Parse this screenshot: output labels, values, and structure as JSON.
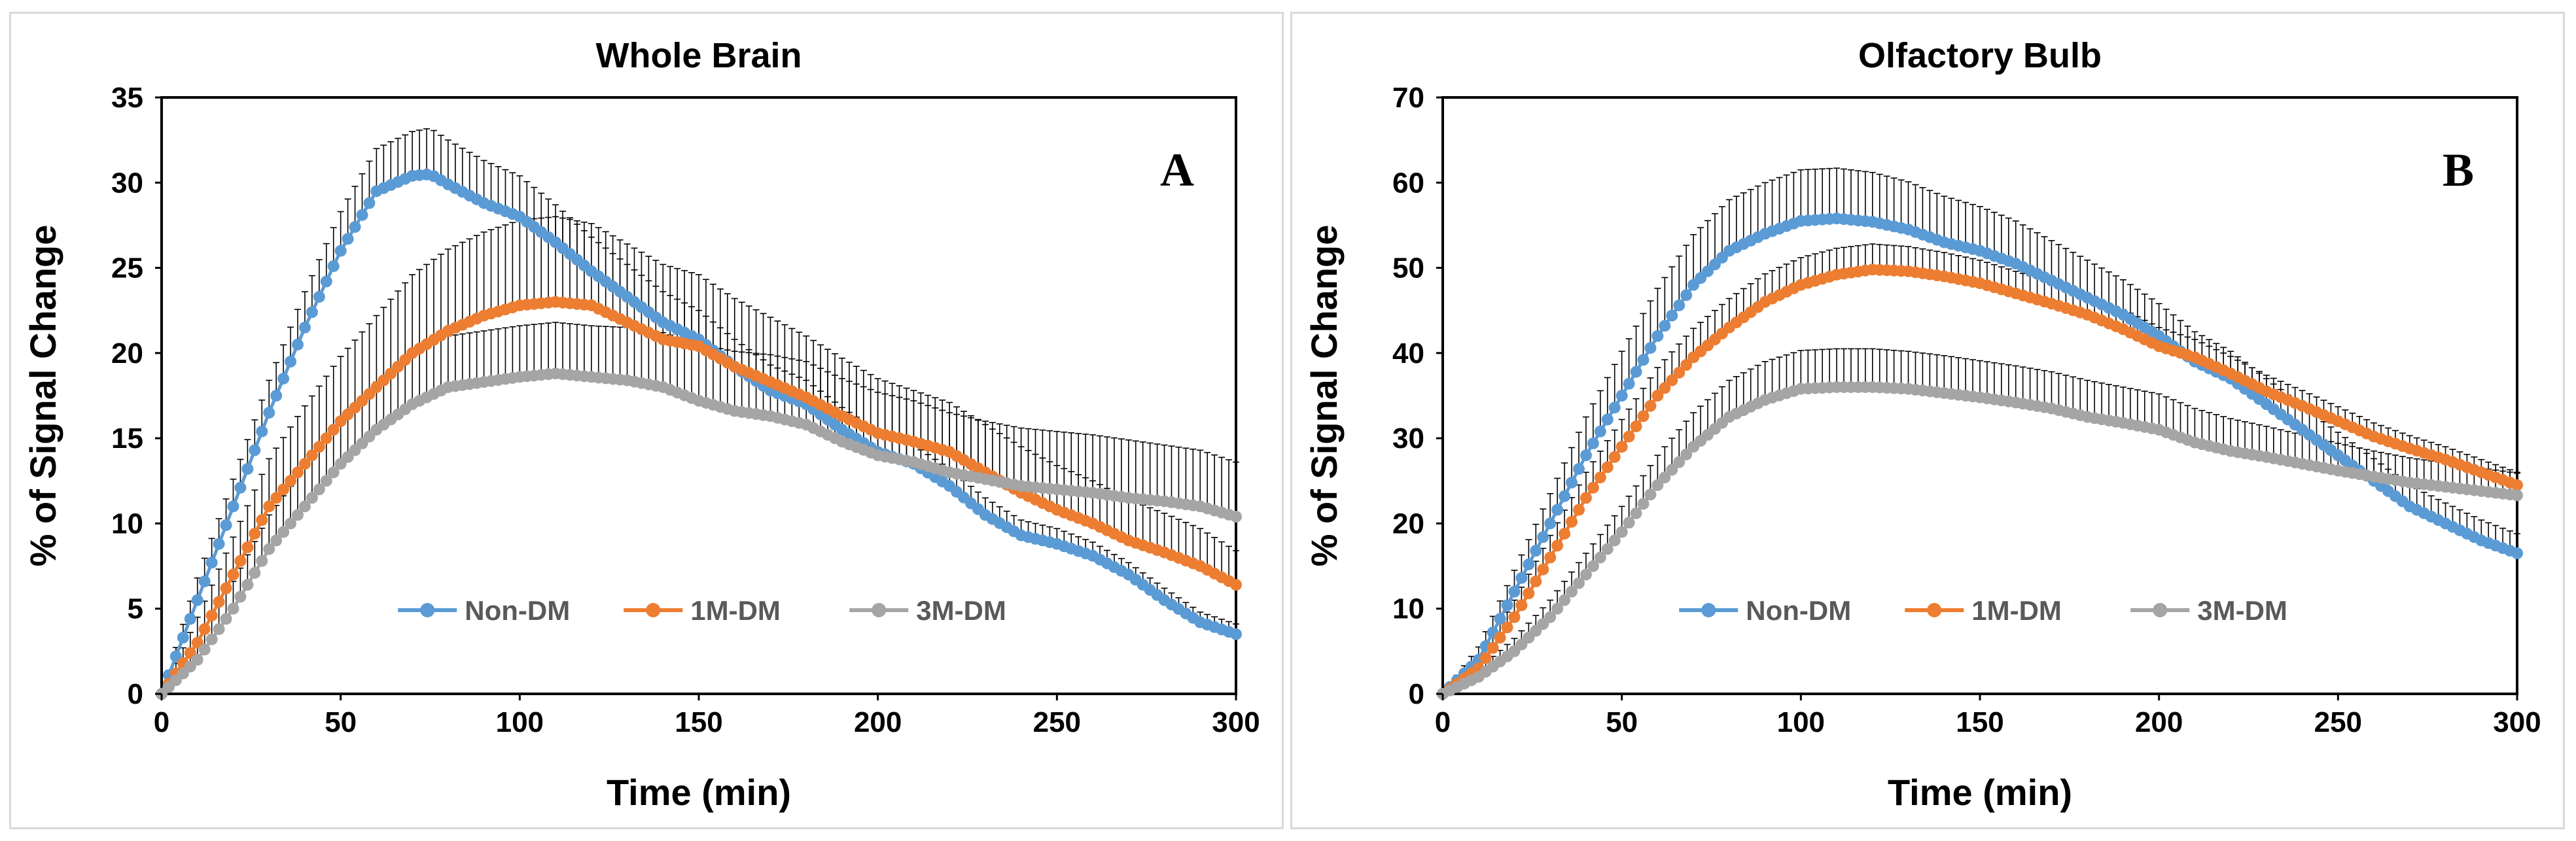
{
  "chart_data": [
    {
      "type": "line",
      "title": "Whole Brain",
      "panel_letter": "A",
      "xlabel": "Time (min)",
      "ylabel": "% of Signal Change",
      "xlim": [
        0,
        300
      ],
      "ylim": [
        0,
        35
      ],
      "xticks": [
        0,
        50,
        100,
        150,
        200,
        250,
        300
      ],
      "yticks": [
        0,
        5,
        10,
        15,
        20,
        25,
        30,
        35
      ],
      "grid": false,
      "legend_position": "bottom-center",
      "series": [
        {
          "name": "Non-DM",
          "color": "#5b9bd5",
          "x": [
            0,
            10,
            20,
            30,
            40,
            50,
            60,
            70,
            75,
            80,
            90,
            100,
            110,
            120,
            130,
            140,
            150,
            160,
            170,
            180,
            190,
            200,
            210,
            220,
            230,
            240,
            250,
            260,
            270,
            280,
            290,
            300
          ],
          "y": [
            0,
            5.5,
            11,
            16.5,
            21.5,
            26,
            29.5,
            30.4,
            30.5,
            29.9,
            28.8,
            28,
            26.5,
            24.8,
            23.3,
            21.8,
            20.8,
            19.2,
            17.8,
            17,
            15.5,
            14.2,
            13.5,
            12.2,
            10.5,
            9.3,
            8.8,
            8.1,
            7,
            5.5,
            4.2,
            3.5
          ],
          "err": [
            0,
            1.3,
            1.6,
            1.9,
            2.1,
            2.3,
            2.5,
            2.6,
            2.7,
            2.6,
            2.5,
            2.4,
            2.2,
            2.0,
            1.9,
            1.8,
            1.7,
            1.6,
            1.5,
            1.4,
            1.3,
            1.2,
            1.1,
            1.0,
            1.0,
            0.9,
            0.9,
            0.8,
            0.7,
            0.7,
            0.6,
            0.6
          ]
        },
        {
          "name": "1M-DM",
          "color": "#ed7d31",
          "x": [
            0,
            10,
            20,
            30,
            40,
            50,
            60,
            70,
            80,
            90,
            100,
            110,
            120,
            130,
            140,
            150,
            160,
            170,
            180,
            190,
            200,
            210,
            220,
            230,
            240,
            250,
            260,
            270,
            280,
            290,
            300
          ],
          "y": [
            0,
            3,
            7,
            11,
            13.5,
            16,
            18,
            20,
            21.3,
            22.2,
            22.8,
            23,
            22.8,
            21.8,
            20.8,
            20.4,
            19.2,
            18.3,
            17.4,
            16.3,
            15.3,
            14.8,
            14.2,
            13,
            11.8,
            10.8,
            10,
            9,
            8.3,
            7.5,
            6.4
          ],
          "err": [
            0,
            1.5,
            2.2,
            2.8,
            3.4,
            3.8,
            4.2,
            4.6,
            4.8,
            4.9,
            5.0,
            5.0,
            4.8,
            4.6,
            4.4,
            4.2,
            4.0,
            3.8,
            3.6,
            3.4,
            3.2,
            3.0,
            2.9,
            2.8,
            2.7,
            2.6,
            2.5,
            2.4,
            2.3,
            2.2,
            2.0
          ]
        },
        {
          "name": "3M-DM",
          "color": "#a5a5a5",
          "x": [
            0,
            10,
            20,
            30,
            40,
            50,
            60,
            70,
            80,
            90,
            100,
            110,
            120,
            130,
            140,
            150,
            160,
            170,
            180,
            190,
            200,
            210,
            220,
            230,
            240,
            250,
            260,
            270,
            280,
            290,
            300
          ],
          "y": [
            0,
            2,
            5,
            8.5,
            11,
            13.5,
            15.5,
            17,
            18,
            18.3,
            18.6,
            18.8,
            18.6,
            18.4,
            18,
            17.2,
            16.6,
            16.3,
            15.8,
            14.8,
            14,
            13.6,
            13,
            12.6,
            12.2,
            12,
            11.8,
            11.5,
            11.3,
            11,
            10.4
          ],
          "err": [
            0,
            1.2,
            1.6,
            2.0,
            2.3,
            2.6,
            2.8,
            2.9,
            3.0,
            3.0,
            3.0,
            3.0,
            3.0,
            3.1,
            3.2,
            3.3,
            3.5,
            3.6,
            3.7,
            3.7,
            3.7,
            3.6,
            3.5,
            3.4,
            3.4,
            3.4,
            3.4,
            3.4,
            3.3,
            3.3,
            3.2
          ]
        }
      ]
    },
    {
      "type": "line",
      "title": "Olfactory Bulb",
      "panel_letter": "B",
      "xlabel": "Time (min)",
      "ylabel": "% of Signal Change",
      "xlim": [
        0,
        300
      ],
      "ylim": [
        0,
        70
      ],
      "xticks": [
        0,
        50,
        100,
        150,
        200,
        250,
        300
      ],
      "yticks": [
        0,
        10,
        20,
        30,
        40,
        50,
        60,
        70
      ],
      "grid": false,
      "legend_position": "bottom-center",
      "series": [
        {
          "name": "Non-DM",
          "color": "#5b9bd5",
          "x": [
            0,
            10,
            20,
            30,
            40,
            50,
            60,
            70,
            80,
            90,
            100,
            110,
            120,
            130,
            140,
            150,
            160,
            170,
            180,
            190,
            200,
            210,
            220,
            230,
            240,
            250,
            260,
            270,
            280,
            290,
            300
          ],
          "y": [
            0,
            4,
            12,
            20,
            28,
            35,
            42,
            48,
            52,
            54,
            55.5,
            55.8,
            55.4,
            54.5,
            53,
            52,
            50.5,
            48.5,
            46.5,
            44.5,
            42,
            39,
            37,
            34,
            31,
            28,
            25,
            22,
            20,
            18,
            16.5
          ],
          "err": [
            0,
            1.5,
            2.5,
            3.5,
            4.5,
            5.2,
            5.6,
            5.9,
            6.0,
            6.0,
            6.0,
            5.9,
            5.8,
            5.6,
            5.4,
            5.2,
            5.0,
            4.7,
            4.4,
            4.1,
            3.8,
            3.5,
            3.2,
            3.0,
            2.8,
            2.7,
            2.6,
            2.5,
            2.4,
            2.4,
            2.3
          ]
        },
        {
          "name": "1M-DM",
          "color": "#ed7d31",
          "x": [
            0,
            10,
            20,
            30,
            40,
            50,
            60,
            70,
            80,
            90,
            100,
            110,
            120,
            130,
            140,
            150,
            160,
            170,
            180,
            190,
            200,
            210,
            220,
            230,
            240,
            250,
            260,
            270,
            280,
            290,
            300
          ],
          "y": [
            0,
            3,
            9,
            16,
            23,
            29,
            35,
            39.5,
            43,
            46,
            48,
            49.2,
            49.8,
            49.6,
            49,
            48.2,
            47,
            45.8,
            44.5,
            42.8,
            40.8,
            39.5,
            37.6,
            35.5,
            33.8,
            32,
            30.2,
            28.8,
            27.5,
            26,
            24.5
          ],
          "err": [
            0,
            1.0,
            2.0,
            2.6,
            3.0,
            3.2,
            3.3,
            3.4,
            3.4,
            3.3,
            3.2,
            3.1,
            3.0,
            2.9,
            2.8,
            2.7,
            2.6,
            2.5,
            2.4,
            2.3,
            2.2,
            2.1,
            2.0,
            1.9,
            1.8,
            1.7,
            1.6,
            1.5,
            1.5,
            1.5,
            1.5
          ]
        },
        {
          "name": "3M-DM",
          "color": "#a5a5a5",
          "x": [
            0,
            10,
            20,
            30,
            40,
            50,
            60,
            70,
            80,
            90,
            100,
            110,
            120,
            130,
            140,
            150,
            160,
            170,
            180,
            190,
            200,
            210,
            220,
            230,
            240,
            250,
            260,
            270,
            280,
            290,
            300
          ],
          "y": [
            0,
            2,
            5,
            9,
            14,
            19,
            24.5,
            29,
            32.5,
            34.5,
            35.8,
            36,
            36,
            35.8,
            35.3,
            34.8,
            34.2,
            33.5,
            32.5,
            31.8,
            31,
            29.5,
            28.5,
            27.8,
            27,
            26.2,
            25.5,
            24.8,
            24.3,
            23.8,
            23.3
          ],
          "err": [
            0,
            1.0,
            1.5,
            2.0,
            2.5,
            3.0,
            3.5,
            4.0,
            4.3,
            4.5,
            4.5,
            4.5,
            4.5,
            4.4,
            4.4,
            4.3,
            4.3,
            4.3,
            4.3,
            4.2,
            4.2,
            4.0,
            3.8,
            3.6,
            3.4,
            3.2,
            3.0,
            2.9,
            2.8,
            2.7,
            2.6
          ]
        }
      ]
    }
  ]
}
